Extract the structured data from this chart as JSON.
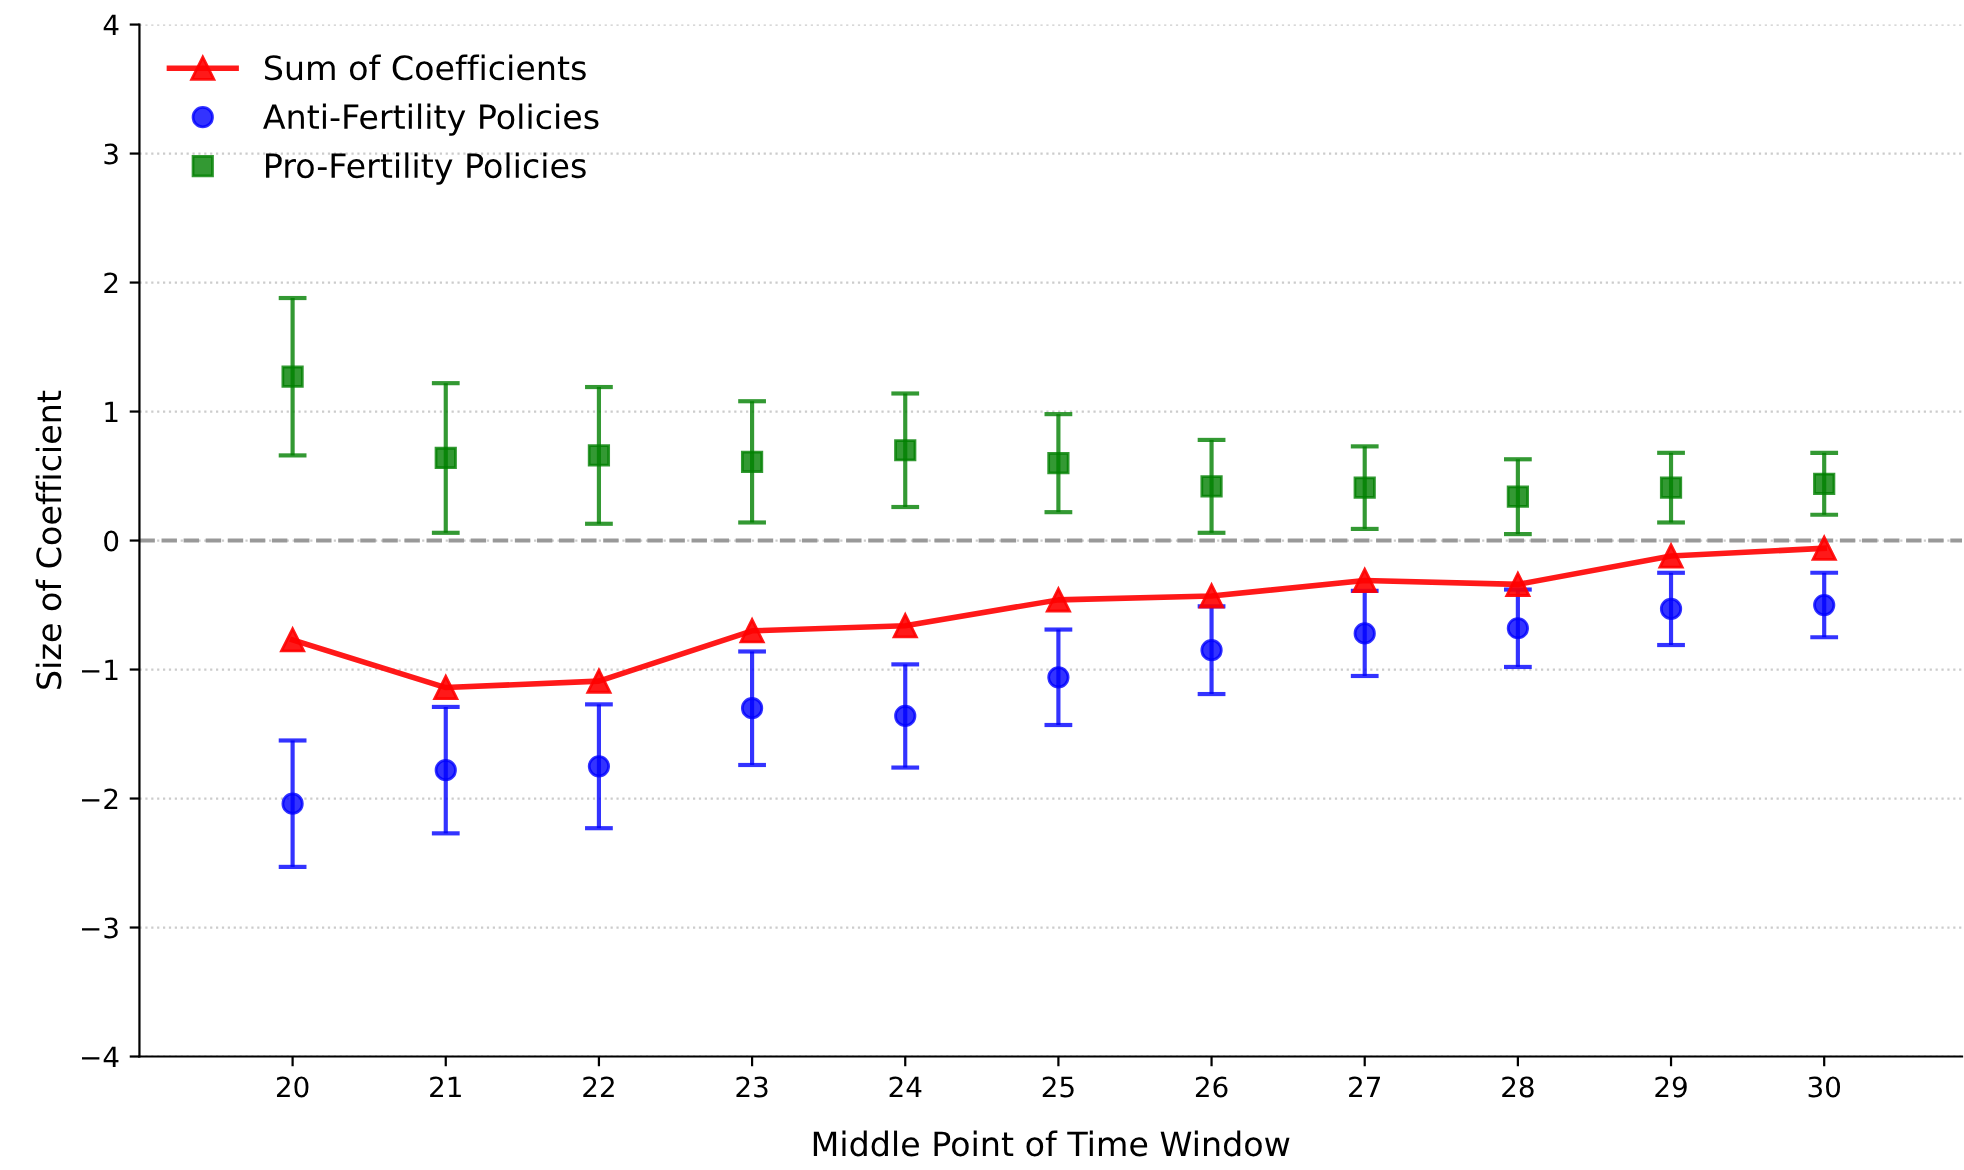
{
  "chart_data": {
    "type": "line",
    "xlabel": "Middle Point of Time Window",
    "ylabel": "Size of Coefficient",
    "x": [
      20,
      21,
      22,
      23,
      24,
      25,
      26,
      27,
      28,
      29,
      30
    ],
    "xlim": [
      19,
      30.9
    ],
    "xticks": [
      20,
      21,
      22,
      23,
      24,
      25,
      26,
      27,
      28,
      29,
      30
    ],
    "ylim": [
      -4,
      4
    ],
    "yticks": [
      {
        "value": -4,
        "label": "−4"
      },
      {
        "value": -3,
        "label": "−3"
      },
      {
        "value": -2,
        "label": "−2"
      },
      {
        "value": -1,
        "label": "−1"
      },
      0,
      1,
      2,
      3,
      4
    ],
    "grid": "y",
    "legend": "top left",
    "ref_lines": [
      {
        "axis": "y",
        "value": 0,
        "color": "#999999",
        "line_style": "dashed"
      }
    ],
    "series": [
      {
        "name": "Sum of Coefficients",
        "color": "#ff0000",
        "marker": "triangle",
        "line_style": "solid",
        "values": [
          -0.77,
          -1.14,
          -1.09,
          -0.7,
          -0.66,
          -0.46,
          -0.43,
          -0.31,
          -0.34,
          -0.12,
          -0.06
        ]
      },
      {
        "name": "Anti-Fertility Policies",
        "type": "scatter",
        "color": "#0000ff",
        "marker": "circle",
        "values": [
          -2.04,
          -1.78,
          -1.75,
          -1.3,
          -1.36,
          -1.06,
          -0.85,
          -0.72,
          -0.68,
          -0.53,
          -0.5
        ],
        "errors": [
          0.49,
          0.49,
          0.48,
          0.44,
          0.4,
          0.37,
          0.34,
          0.33,
          0.3,
          0.28,
          0.25
        ]
      },
      {
        "name": "Pro-Fertility Policies",
        "type": "scatter",
        "color": "#008000",
        "marker": "square",
        "values": [
          1.27,
          0.64,
          0.66,
          0.61,
          0.7,
          0.6,
          0.42,
          0.41,
          0.34,
          0.41,
          0.44
        ],
        "errors": [
          0.61,
          0.58,
          0.53,
          0.47,
          0.44,
          0.38,
          0.36,
          0.32,
          0.29,
          0.27,
          0.24
        ]
      }
    ]
  }
}
